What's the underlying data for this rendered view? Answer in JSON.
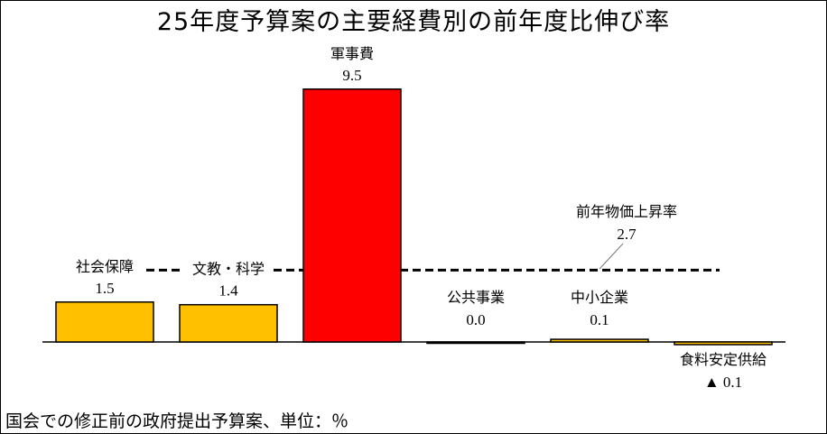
{
  "title": "25年度予算案の主要経費別の前年度比伸び率",
  "footnote": "国会での修正前の政府提出予算案、単位：％",
  "colors": {
    "default_bar": "#ffc000",
    "highlight_bar": "#ff0000",
    "reference_line": "#000000"
  },
  "chart_data": {
    "type": "bar",
    "title": "25年度予算案の主要経費別の前年度比伸び率",
    "categories": [
      "社会保障",
      "文教・科学",
      "軍事費",
      "公共事業",
      "中小企業",
      "食料安定供給"
    ],
    "values": [
      1.5,
      1.4,
      9.5,
      0.0,
      0.1,
      -0.1
    ],
    "value_labels": [
      "1.5",
      "1.4",
      "9.5",
      "0.0",
      "0.1",
      "▲ 0.1"
    ],
    "highlight_index": 2,
    "reference_line": {
      "label": "前年物価上昇率",
      "value": 2.7,
      "value_label": "2.7",
      "style": "dashed"
    },
    "unit": "％",
    "grid": false,
    "ylim": [
      -0.2,
      10
    ]
  }
}
